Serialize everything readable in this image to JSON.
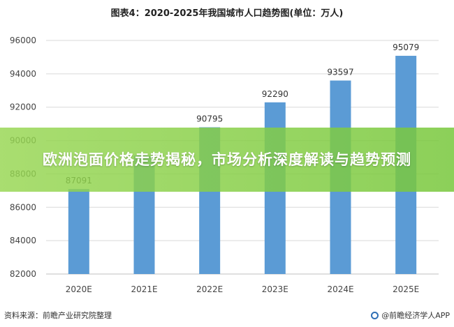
{
  "banner": {
    "text": "欧洲泡面价格走势揭秘，市场分析深度解读与趋势预测"
  },
  "footer": {
    "source": "资料来源：前瞻产业研究院整理",
    "brand": "@前瞻经济学人APP"
  },
  "chart_data": {
    "type": "bar",
    "title": "图表4：2020-2025年我国城市人口趋势图(单位：万人)",
    "categories": [
      "2020E",
      "2021E",
      "2022E",
      "2023E",
      "2024E",
      "2025E"
    ],
    "values": [
      87091,
      89100,
      90795,
      92290,
      93597,
      95079
    ],
    "labels": [
      "87091",
      "",
      "90795",
      "92290",
      "93597",
      "95079"
    ],
    "ylim": [
      82000,
      96000
    ],
    "yticks": [
      82000,
      84000,
      86000,
      88000,
      90000,
      92000,
      94000,
      96000
    ],
    "grid": true,
    "bar_color": "#5b9bd5",
    "xlabel": "",
    "ylabel": ""
  }
}
